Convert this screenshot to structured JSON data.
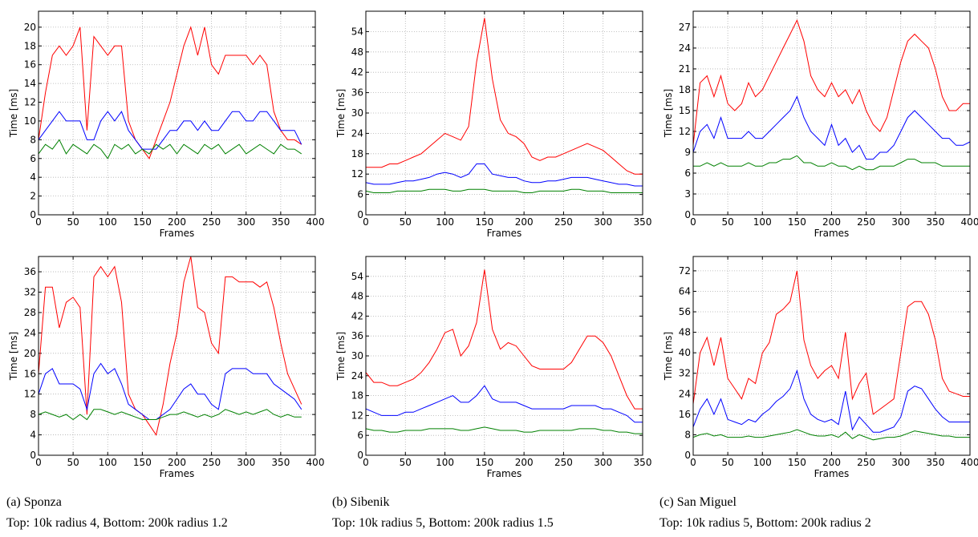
{
  "chart_data": [
    {
      "type": "line",
      "xlabel": "Frames",
      "ylabel": "Time [ms]",
      "grid": true,
      "x": [
        0,
        10,
        20,
        30,
        40,
        50,
        60,
        70,
        80,
        90,
        100,
        110,
        120,
        130,
        140,
        150,
        160,
        170,
        180,
        190,
        200,
        210,
        220,
        230,
        240,
        250,
        260,
        270,
        280,
        290,
        300,
        310,
        320,
        330,
        340,
        350,
        360,
        370,
        380
      ],
      "xlim": [
        0,
        400
      ],
      "xticks": [
        0,
        50,
        100,
        150,
        200,
        250,
        300,
        350,
        400
      ],
      "ylim": [
        0,
        21.7
      ],
      "yticks": [
        0,
        2,
        4,
        6,
        8,
        10,
        12,
        14,
        16,
        18,
        20
      ],
      "series": [
        {
          "color": "#ff0000",
          "values": [
            8,
            13,
            17,
            18,
            17,
            18,
            20,
            9,
            19,
            18,
            17,
            18,
            18,
            10,
            8,
            7,
            6,
            8,
            10,
            12,
            15,
            18,
            20,
            17,
            20,
            16,
            15,
            17,
            17,
            17,
            17,
            16,
            17,
            16,
            11,
            9,
            8,
            8,
            7.5
          ]
        },
        {
          "color": "#0000ff",
          "values": [
            8,
            9,
            10,
            11,
            10,
            10,
            10,
            8,
            8,
            10,
            11,
            10,
            11,
            9,
            8,
            7,
            7,
            7,
            8,
            9,
            9,
            10,
            10,
            9,
            10,
            9,
            9,
            10,
            11,
            11,
            10,
            10,
            11,
            11,
            10,
            9,
            9,
            9,
            7.5
          ]
        },
        {
          "color": "#008000",
          "values": [
            6.5,
            7.5,
            7,
            8,
            6.5,
            7.5,
            7,
            6.5,
            7.5,
            7,
            6,
            7.5,
            7,
            7.5,
            6.5,
            7,
            6.5,
            7.5,
            7,
            7.5,
            6.5,
            7.5,
            7,
            6.5,
            7.5,
            7,
            7.5,
            6.5,
            7,
            7.5,
            6.5,
            7,
            7.5,
            7,
            6.5,
            7.5,
            7,
            7,
            6.5
          ]
        }
      ]
    },
    {
      "type": "line",
      "xlabel": "Frames",
      "ylabel": "Time [ms]",
      "grid": true,
      "x": [
        0,
        10,
        20,
        30,
        40,
        50,
        60,
        70,
        80,
        90,
        100,
        110,
        120,
        130,
        140,
        150,
        160,
        170,
        180,
        190,
        200,
        210,
        220,
        230,
        240,
        250,
        260,
        270,
        280,
        290,
        300,
        310,
        320,
        330,
        340,
        350,
        360,
        370,
        380
      ],
      "xlim": [
        0,
        400
      ],
      "xticks": [
        0,
        50,
        100,
        150,
        200,
        250,
        300,
        350,
        400
      ],
      "ylim": [
        0,
        39
      ],
      "yticks": [
        0,
        4,
        8,
        12,
        16,
        20,
        24,
        28,
        32,
        36
      ],
      "series": [
        {
          "color": "#ff0000",
          "values": [
            16,
            33,
            33,
            25,
            30,
            31,
            29,
            8,
            35,
            37,
            35,
            37,
            30,
            12,
            9,
            8,
            6,
            4,
            10,
            18,
            24,
            34,
            39,
            29,
            28,
            22,
            20,
            35,
            35,
            34,
            34,
            34,
            33,
            34,
            29,
            22,
            16,
            13,
            10
          ]
        },
        {
          "color": "#0000ff",
          "values": [
            12,
            16,
            17,
            14,
            14,
            14,
            13,
            9,
            16,
            18,
            16,
            17,
            14,
            10,
            9,
            8,
            7,
            7,
            8,
            9,
            11,
            13,
            14,
            12,
            12,
            10,
            9,
            16,
            17,
            17,
            17,
            16,
            16,
            16,
            14,
            13,
            12,
            11,
            9
          ]
        },
        {
          "color": "#008000",
          "values": [
            8,
            8.5,
            8,
            7.5,
            8,
            7,
            8,
            7,
            9,
            9,
            8.5,
            8,
            8.5,
            8,
            7.5,
            7,
            7,
            7,
            7.5,
            8,
            8,
            8.5,
            8,
            7.5,
            8,
            7.5,
            8,
            9,
            8.5,
            8,
            8.5,
            8,
            8.5,
            9,
            8,
            7.5,
            8,
            7.5,
            7.5
          ]
        }
      ]
    },
    {
      "type": "line",
      "xlabel": "Frames",
      "ylabel": "Time [ms]",
      "grid": true,
      "x": [
        0,
        10,
        20,
        30,
        40,
        50,
        60,
        70,
        80,
        90,
        100,
        110,
        120,
        130,
        140,
        150,
        160,
        170,
        180,
        190,
        200,
        210,
        220,
        230,
        240,
        250,
        260,
        270,
        280,
        290,
        300,
        310,
        320,
        330,
        340,
        350
      ],
      "xlim": [
        0,
        350
      ],
      "xticks": [
        0,
        50,
        100,
        150,
        200,
        250,
        300,
        350
      ],
      "ylim": [
        0,
        60
      ],
      "yticks": [
        0,
        6,
        12,
        18,
        24,
        30,
        36,
        42,
        48,
        54
      ],
      "series": [
        {
          "color": "#ff0000",
          "values": [
            14,
            14,
            14,
            15,
            15,
            16,
            17,
            18,
            20,
            22,
            24,
            23,
            22,
            26,
            45,
            58,
            40,
            28,
            24,
            23,
            21,
            17,
            16,
            17,
            17,
            18,
            19,
            20,
            21,
            20,
            19,
            17,
            15,
            13,
            12,
            12
          ]
        },
        {
          "color": "#0000ff",
          "values": [
            9.5,
            9,
            9,
            9,
            9.5,
            10,
            10,
            10.5,
            11,
            12,
            12.5,
            12,
            11,
            12,
            15,
            15,
            12,
            11.5,
            11,
            11,
            10,
            9.5,
            9.5,
            10,
            10,
            10.5,
            11,
            11,
            11,
            10.5,
            10,
            9.5,
            9,
            9,
            8.5,
            8.5
          ]
        },
        {
          "color": "#008000",
          "values": [
            7,
            6.5,
            6.5,
            6.5,
            7,
            7,
            7,
            7,
            7.5,
            7.5,
            7.5,
            7,
            7,
            7.5,
            7.5,
            7.5,
            7,
            7,
            7,
            7,
            6.5,
            6.5,
            7,
            7,
            7,
            7,
            7.5,
            7.5,
            7,
            7,
            7,
            6.5,
            6.5,
            6.5,
            6.5,
            6.5
          ]
        }
      ]
    },
    {
      "type": "line",
      "xlabel": "Frames",
      "ylabel": "Time [ms]",
      "grid": true,
      "x": [
        0,
        10,
        20,
        30,
        40,
        50,
        60,
        70,
        80,
        90,
        100,
        110,
        120,
        130,
        140,
        150,
        160,
        170,
        180,
        190,
        200,
        210,
        220,
        230,
        240,
        250,
        260,
        270,
        280,
        290,
        300,
        310,
        320,
        330,
        340,
        350
      ],
      "xlim": [
        0,
        350
      ],
      "xticks": [
        0,
        50,
        100,
        150,
        200,
        250,
        300,
        350
      ],
      "ylim": [
        0,
        60
      ],
      "yticks": [
        0,
        6,
        12,
        18,
        24,
        30,
        36,
        42,
        48,
        54
      ],
      "series": [
        {
          "color": "#ff0000",
          "values": [
            25,
            22,
            22,
            21,
            21,
            22,
            23,
            25,
            28,
            32,
            37,
            38,
            30,
            33,
            40,
            56,
            38,
            32,
            34,
            33,
            30,
            27,
            26,
            26,
            26,
            26,
            28,
            32,
            36,
            36,
            34,
            30,
            24,
            18,
            14,
            14
          ]
        },
        {
          "color": "#0000ff",
          "values": [
            14,
            13,
            12,
            12,
            12,
            13,
            13,
            14,
            15,
            16,
            17,
            18,
            16,
            16,
            18,
            21,
            17,
            16,
            16,
            16,
            15,
            14,
            14,
            14,
            14,
            14,
            15,
            15,
            15,
            15,
            14,
            14,
            13,
            12,
            10,
            10
          ]
        },
        {
          "color": "#008000",
          "values": [
            8,
            7.5,
            7.5,
            7,
            7,
            7.5,
            7.5,
            7.5,
            8,
            8,
            8,
            8,
            7.5,
            7.5,
            8,
            8.5,
            8,
            7.5,
            7.5,
            7.5,
            7,
            7,
            7.5,
            7.5,
            7.5,
            7.5,
            7.5,
            8,
            8,
            8,
            7.5,
            7.5,
            7,
            7,
            6.5,
            6.5
          ]
        }
      ]
    },
    {
      "type": "line",
      "xlabel": "Frames",
      "ylabel": "Time [ms]",
      "grid": true,
      "x": [
        0,
        10,
        20,
        30,
        40,
        50,
        60,
        70,
        80,
        90,
        100,
        110,
        120,
        130,
        140,
        150,
        160,
        170,
        180,
        190,
        200,
        210,
        220,
        230,
        240,
        250,
        260,
        270,
        280,
        290,
        300,
        310,
        320,
        330,
        340,
        350,
        360,
        370,
        380,
        390,
        400
      ],
      "xlim": [
        0,
        400
      ],
      "xticks": [
        0,
        50,
        100,
        150,
        200,
        250,
        300,
        350,
        400
      ],
      "ylim": [
        0,
        29.3
      ],
      "yticks": [
        0,
        3,
        6,
        9,
        12,
        15,
        18,
        21,
        24,
        27
      ],
      "series": [
        {
          "color": "#ff0000",
          "values": [
            10,
            19,
            20,
            17,
            20,
            16,
            15,
            16,
            19,
            17,
            18,
            20,
            22,
            24,
            26,
            28,
            25,
            20,
            18,
            17,
            19,
            17,
            18,
            16,
            18,
            15,
            13,
            12,
            14,
            18,
            22,
            25,
            26,
            25,
            24,
            21,
            17,
            15,
            15,
            16,
            16
          ]
        },
        {
          "color": "#0000ff",
          "values": [
            9,
            12,
            13,
            11,
            14,
            11,
            11,
            11,
            12,
            11,
            11,
            12,
            13,
            14,
            15,
            17,
            14,
            12,
            11,
            10,
            13,
            10,
            11,
            9,
            10,
            8,
            8,
            9,
            9,
            10,
            12,
            14,
            15,
            14,
            13,
            12,
            11,
            11,
            10,
            10,
            10.5
          ]
        },
        {
          "color": "#008000",
          "values": [
            7,
            7,
            7.5,
            7,
            7.5,
            7,
            7,
            7,
            7.5,
            7,
            7,
            7.5,
            7.5,
            8,
            8,
            8.5,
            7.5,
            7.5,
            7,
            7,
            7.5,
            7,
            7,
            6.5,
            7,
            6.5,
            6.5,
            7,
            7,
            7,
            7.5,
            8,
            8,
            7.5,
            7.5,
            7.5,
            7,
            7,
            7,
            7,
            7
          ]
        }
      ]
    },
    {
      "type": "line",
      "xlabel": "Frames",
      "ylabel": "Time [ms]",
      "grid": true,
      "x": [
        0,
        10,
        20,
        30,
        40,
        50,
        60,
        70,
        80,
        90,
        100,
        110,
        120,
        130,
        140,
        150,
        160,
        170,
        180,
        190,
        200,
        210,
        220,
        230,
        240,
        250,
        260,
        270,
        280,
        290,
        300,
        310,
        320,
        330,
        340,
        350,
        360,
        370,
        380,
        390,
        400
      ],
      "xlim": [
        0,
        400
      ],
      "xticks": [
        0,
        50,
        100,
        150,
        200,
        250,
        300,
        350,
        400
      ],
      "ylim": [
        0,
        77.6
      ],
      "yticks": [
        0,
        8,
        16,
        24,
        32,
        40,
        48,
        56,
        64,
        72
      ],
      "series": [
        {
          "color": "#ff0000",
          "values": [
            20,
            40,
            46,
            35,
            46,
            30,
            26,
            22,
            30,
            28,
            40,
            44,
            55,
            57,
            60,
            72,
            45,
            35,
            30,
            33,
            35,
            30,
            48,
            22,
            28,
            32,
            16,
            18,
            20,
            22,
            40,
            58,
            60,
            60,
            55,
            45,
            30,
            25,
            24,
            23,
            23
          ]
        },
        {
          "color": "#0000ff",
          "values": [
            11,
            18,
            22,
            16,
            22,
            14,
            13,
            12,
            14,
            13,
            16,
            18,
            21,
            23,
            26,
            33,
            22,
            16,
            14,
            13,
            14,
            12,
            25,
            10,
            15,
            12,
            9,
            9,
            10,
            11,
            15,
            25,
            27,
            26,
            22,
            18,
            15,
            13,
            13,
            13,
            13
          ]
        },
        {
          "color": "#008000",
          "values": [
            7,
            8,
            8.5,
            7.5,
            8,
            7,
            7,
            7,
            7.5,
            7,
            7,
            7.5,
            8,
            8.5,
            9,
            10,
            9,
            8,
            7.5,
            7.5,
            8,
            7,
            9,
            6.5,
            8,
            7,
            6,
            6.5,
            7,
            7,
            7.5,
            8.5,
            9.5,
            9,
            8.5,
            8,
            7.5,
            7.5,
            7,
            7,
            7
          ]
        }
      ]
    }
  ],
  "captions": [
    {
      "label": "(a) Sponza",
      "detail": "Top: 10k radius 4, Bottom: 200k radius 1.2"
    },
    {
      "label": "(b) Sibenik",
      "detail": "Top: 10k radius 5, Bottom: 200k radius 1.5"
    },
    {
      "label": "(c) San Miguel",
      "detail": "Top: 10k radius 5, Bottom: 200k radius 2"
    }
  ]
}
